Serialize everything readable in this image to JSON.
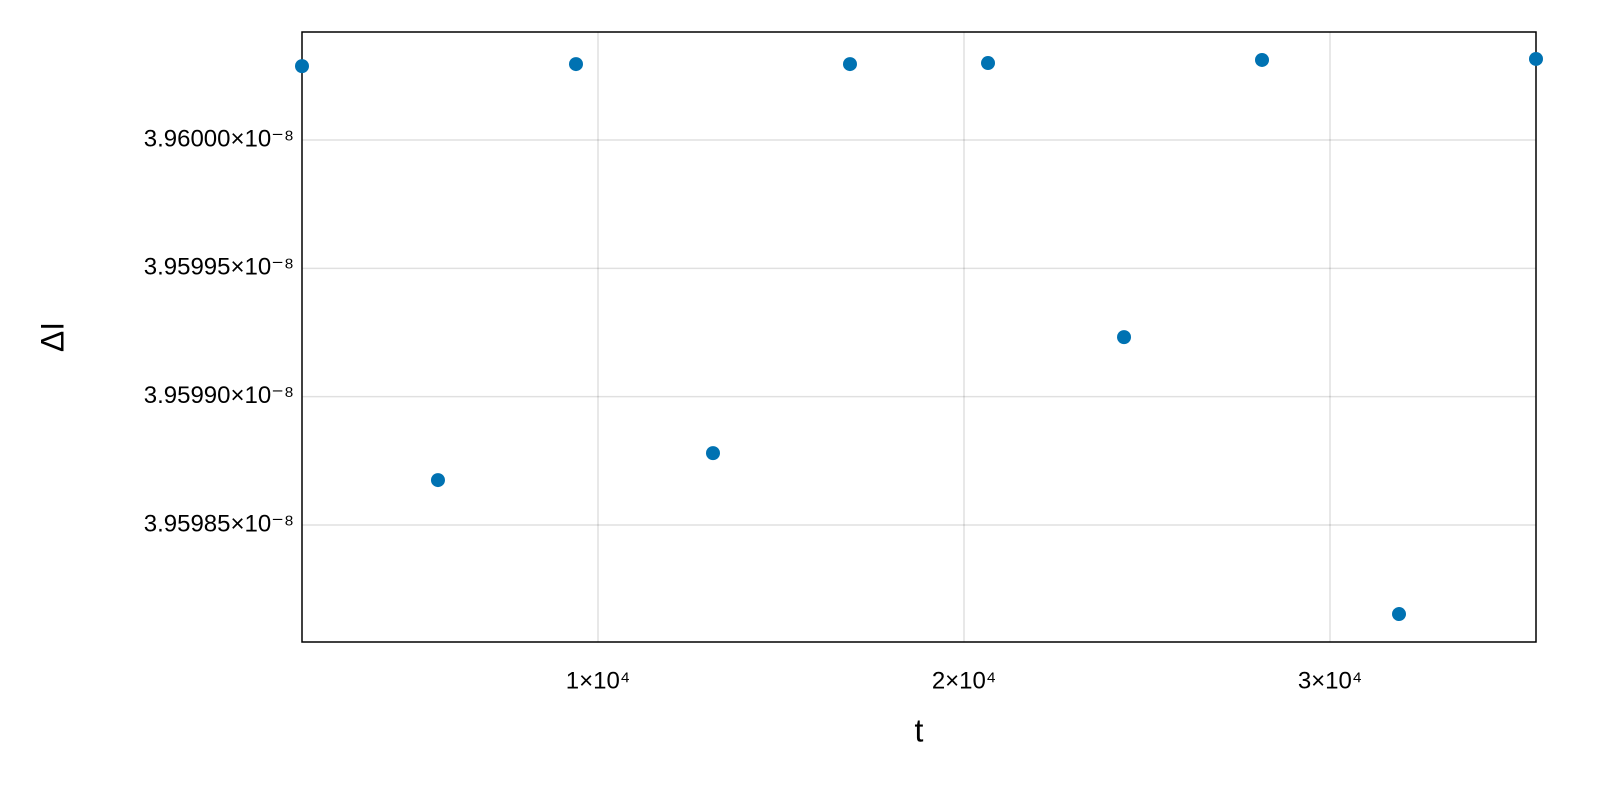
{
  "chart_data": {
    "type": "scatter",
    "x_label": "t",
    "y_label": "ΔI",
    "x": [
      1913,
      5628,
      9399,
      13142,
      16885,
      20656,
      24372,
      28142,
      31885,
      35628
    ],
    "color": "#0072b2",
    "values": [
      3.9600288e-08,
      3.9598675e-08,
      3.9600296e-08,
      3.959878e-08,
      3.9600296e-08,
      3.96003e-08,
      3.9599232e-08,
      3.9600312e-08,
      3.9598153e-08,
      3.9600316e-08
    ],
    "xlim": [
      1913,
      35628
    ],
    "ylim": [
      3.9598044e-08,
      3.9600421e-08
    ],
    "xticks": [
      {
        "value": 10000,
        "label": "1×10⁴"
      },
      {
        "value": 20000,
        "label": "2×10⁴"
      },
      {
        "value": 30000,
        "label": "3×10⁴"
      }
    ],
    "yticks": [
      {
        "value": 3.95985e-08,
        "label": "3.95985×10⁻⁸"
      },
      {
        "value": 3.9599e-08,
        "label": "3.95990×10⁻⁸"
      },
      {
        "value": 3.95995e-08,
        "label": "3.95995×10⁻⁸"
      },
      {
        "value": 3.96e-08,
        "label": "3.96000×10⁻⁸"
      }
    ],
    "grid": true
  }
}
